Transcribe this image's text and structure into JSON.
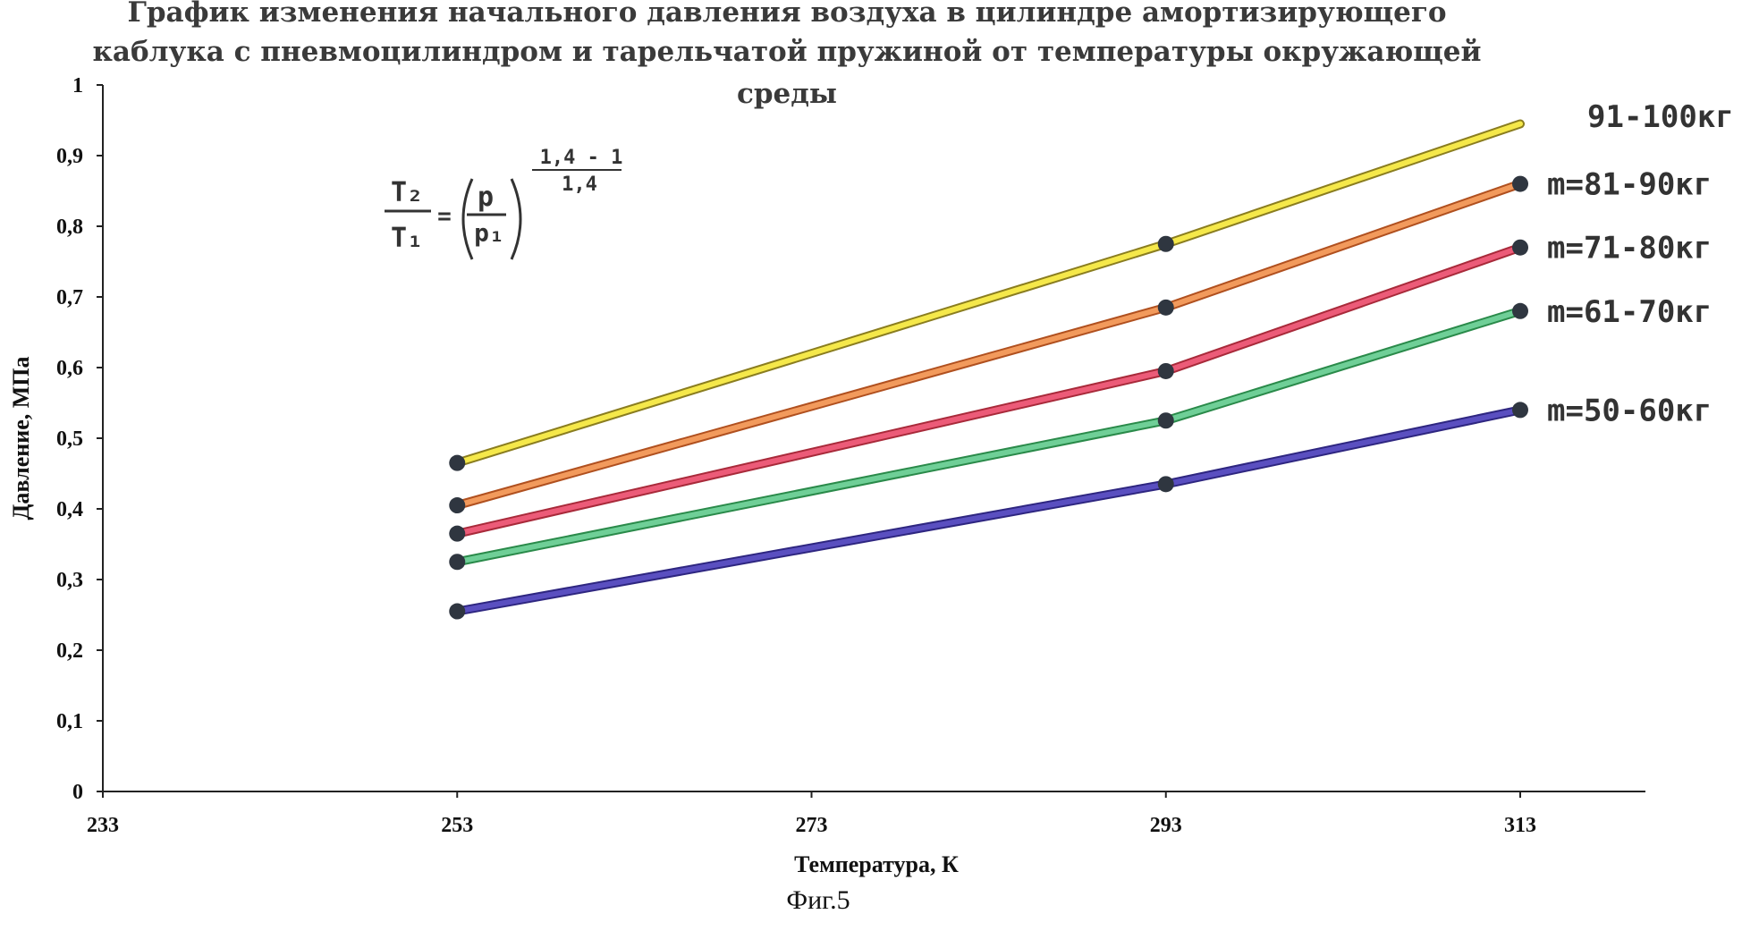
{
  "chart_data": {
    "type": "line",
    "title": [
      "График изменения начального давления воздуха в цилиндре амортизирующего",
      "каблука с пневмоцилиндром и тарельчатой пружиной от температуры окружающей",
      "среды"
    ],
    "xlabel": "Температура, К",
    "ylabel": "Давление, МПа",
    "xlim": [
      233,
      313
    ],
    "ylim": [
      0,
      1
    ],
    "x_ticks": [
      "233",
      "253",
      "273",
      "293",
      "313"
    ],
    "y_ticks": [
      "0",
      "0,1",
      "0,2",
      "0,3",
      "0,4",
      "0,5",
      "0,6",
      "0,7",
      "0,8",
      "0,9",
      "1"
    ],
    "x": [
      253,
      293,
      313
    ],
    "series": [
      {
        "name": "91-100кг",
        "values": [
          0.465,
          0.775,
          0.945
        ],
        "color": "#f5e84a",
        "edge": "#8a7d1f"
      },
      {
        "name": "m=81-90кг",
        "values": [
          0.405,
          0.685,
          0.86
        ],
        "color": "#f29a5c",
        "edge": "#b0501f"
      },
      {
        "name": "m=71-80кг",
        "values": [
          0.365,
          0.595,
          0.77
        ],
        "color": "#ec5b78",
        "edge": "#a82a3a"
      },
      {
        "name": "m=61-70кг",
        "values": [
          0.325,
          0.525,
          0.68
        ],
        "color": "#6fcf97",
        "edge": "#2a8a4a"
      },
      {
        "name": "m=50-60кг",
        "values": [
          0.255,
          0.435,
          0.54
        ],
        "color": "#5a4fc0",
        "edge": "#2e2680"
      }
    ],
    "marker_color": "#2f3640",
    "formula": {
      "lhs_top": "T₂",
      "lhs_bottom": "T₁",
      "eq": "=",
      "frac_top": "p",
      "frac_bottom": "p₁",
      "exp_top": "1,4 - 1",
      "exp_bottom": "1,4"
    },
    "caption": "Фиг.5",
    "grid": false,
    "legend": "right"
  }
}
